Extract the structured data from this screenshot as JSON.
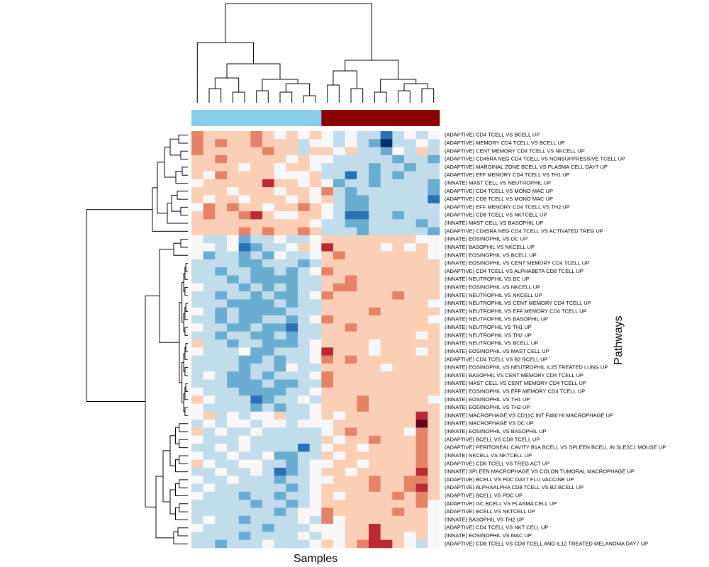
{
  "chart_data": {
    "type": "heatmap",
    "xlabel": "Samples",
    "ylabel": "Pathways",
    "colors": [
      "#053061",
      "#2166ac",
      "#4393c3",
      "#92c5de",
      "#d1e5f0",
      "#f7f7f7",
      "#fddbc7",
      "#f4a582",
      "#d6604d",
      "#b2182b",
      "#67001f"
    ],
    "column_colors": [
      "#87ceeb",
      "#87ceeb",
      "#87ceeb",
      "#87ceeb",
      "#87ceeb",
      "#87ceeb",
      "#87ceeb",
      "#87ceeb",
      "#87ceeb",
      "#87ceeb",
      "#87ceeb",
      "#8b0000",
      "#8b0000",
      "#8b0000",
      "#8b0000",
      "#8b0000",
      "#8b0000",
      "#8b0000",
      "#8b0000",
      "#8b0000",
      "#8b0000"
    ],
    "row_labels": [
      "(ADAPTIVE) CD4 TCELL VS BCELL UP",
      "(ADAPTIVE) MEMORY CD4 TCELL VS BCELL UP",
      "(ADAPTIVE) CENT MEMORY CD4 TCELL VS NKCELL UP",
      "(ADAPTIVE) CD45RA NEG CD4 TCELL VS NONSUPPRESSIVE TCELL UP",
      "(ADAPTIVE) MARGINAL ZONE BCELL VS PLASMA CELL DAY7 UP",
      "(ADAPTIVE) EFF MEMORY CD4 TCELL VS TH1 UP",
      "(INNATE) MAST CELL VS NEUTROPHIL UP",
      "(ADAPTIVE) CD4 TCELL VS MONO MAC UP",
      "(ADAPTIVE) CD8 TCELL VS MONO MAC UP",
      "(ADAPTIVE) EFF MEMORY CD4 TCELL VS TH2 UP",
      "(ADAPTIVE) CD8 TCELL VS NKTCELL UP",
      "(INNATE) MAST CELL VS BASOPHIL UP",
      "(ADAPTIVE) CD45RA NEG CD4 TCELL VS ACTIVATED TREG UP",
      "(INNATE) EOSINOPHIL VS DC UP",
      "(INNATE) BASOPHIL VS NKCELL UP",
      "(INNATE) EOSINOPHIL VS BCELL UP",
      "(INNATE) EOSINOPHIL VS CENT MEMORY CD4 TCELL UP",
      "(ADAPTIVE) CD4 TCELL VS ALPHABETA CD8 TCELL UP",
      "(INNATE) NEUTROPHIL VS DC UP",
      "(INNATE) EOSINOPHIL VS NKCELL UP",
      "(INNATE) NEUTROPHIL VS NKCELL UP",
      "(INNATE) NEUTROPHIL VS CENT MEMORY CD4 TCELL UP",
      "(INNATE) NEUTROPHIL VS EFF MEMORY CD4 TCELL UP",
      "(INNATE) NEUTROPHIL VS BASOPHIL UP",
      "(INNATE) NEUTROPHIL VS TH1 UP",
      "(INNATE) NEUTROPHIL VS TH2 UP",
      "(INNATE) NEUTROPHIL VS BCELL UP",
      "(INNATE) EOSINOPHIL VS MAST CELL UP",
      "(ADAPTIVE) CD4 TCELL VS B2 BCELL UP",
      "(INNATE) EOSINOPHIL VS NEUTROPHIL IL25 TREATED LUNG UP",
      "(INNATE) BASOPHIL VS CENT MEMORY CD4 TCELL UP",
      "(INNATE) MAST CELL VS CENT MEMORY CD4 TCELL UP",
      "(INNATE) EOSINOPHIL VS EFF MEMORY CD4 TCELL UP",
      "(INNATE) EOSINOPHIL VS TH1 UP",
      "(INNATE) EOSINOPHIL VS TH2 UP",
      "(INNATE) MACROPHAGE VS CD11C INT F480 HI MACROPHAGE UP",
      "(INNATE) MACROPHAGE VS DC UP",
      "(INNATE) EOSINOPHIL VS BASOPHIL UP",
      "(ADAPTIVE) BCELL VS CD8 TCELL UP",
      "(ADAPTIVE) PERITONEAL CAVITY B1A BCELL VS SPLEEN BCELL IN SLE2C1 MOUSE UP",
      "(INNATE) NKCELL VS NKTCELL UP",
      "(ADAPTIVE) CD8 TCELL VS TREG ACT UP",
      "(INNATE) SPLEEN MACROPHAGE VS COLON TUMORAL MACROPHAGE UP",
      "(ADAPTIVE) BCELL VS PDC DAY7 FLU VACCINE UP",
      "(ADAPTIVE) ALPHAALPHA CD8 TCELL VS B2 BCELL UP",
      "(ADAPTIVE) BCELL VS PDC UP",
      "(ADAPTIVE) GC BCELL VS PLASMA CELL UP",
      "(ADAPTIVE) BCELL VS NKTCELL UP",
      "(INNATE) BASOPHIL VS TH2 UP",
      "(ADAPTIVE) CD4 TCELL VS NKT CELL UP",
      "(INNATE) EOSINOPHIL VS MAC UP",
      "(ADAPTIVE) CD8 TCELL VS CD8 TCELL AND IL12 TREATED MELANOMA DAY7 UP"
    ],
    "values": [
      [
        2,
        1,
        1,
        1,
        1,
        2,
        1,
        0,
        1,
        0,
        1,
        0,
        -1,
        0,
        -1,
        -1,
        -3,
        -1,
        0,
        -1,
        0
      ],
      [
        2,
        1,
        2,
        1,
        1,
        2,
        1,
        1,
        1,
        -1,
        0,
        0,
        -1,
        0,
        -1,
        -2,
        -4,
        -1,
        -1,
        0,
        -1
      ],
      [
        2,
        1,
        1,
        1,
        1,
        1,
        2,
        1,
        1,
        -1,
        1,
        1,
        0,
        1,
        -1,
        -1,
        -2,
        0,
        -1,
        1,
        -1
      ],
      [
        1,
        1,
        2,
        1,
        1,
        1,
        1,
        1,
        0,
        1,
        0,
        0,
        -1,
        -1,
        -1,
        -1,
        -1,
        -2,
        -1,
        -1,
        -2
      ],
      [
        1,
        1,
        1,
        1,
        0,
        1,
        1,
        0,
        1,
        1,
        0,
        -1,
        -1,
        -1,
        -1,
        -2,
        -1,
        -1,
        -2,
        -1,
        -1
      ],
      [
        1,
        0,
        2,
        1,
        1,
        1,
        1,
        0,
        0,
        0,
        1,
        -1,
        -1,
        -3,
        -1,
        -2,
        -1,
        -2,
        -1,
        -1,
        -1
      ],
      [
        0,
        1,
        1,
        1,
        1,
        1,
        3,
        1,
        1,
        0,
        1,
        0,
        -2,
        -1,
        -1,
        -2,
        -1,
        -1,
        -1,
        -1,
        -2
      ],
      [
        1,
        1,
        1,
        0,
        1,
        1,
        1,
        0,
        1,
        1,
        0,
        2,
        -1,
        -2,
        -1,
        -1,
        -1,
        -1,
        -1,
        -1,
        -2
      ],
      [
        1,
        0,
        1,
        1,
        0,
        1,
        1,
        1,
        0,
        1,
        0,
        1,
        -1,
        -2,
        -2,
        -1,
        -1,
        -1,
        -1,
        -1,
        -3
      ],
      [
        0,
        2,
        1,
        2,
        1,
        1,
        0,
        1,
        1,
        2,
        1,
        0,
        -1,
        -2,
        -2,
        -1,
        -1,
        -1,
        -1,
        -1,
        -1
      ],
      [
        1,
        2,
        1,
        1,
        2,
        3,
        1,
        0,
        0,
        1,
        1,
        0,
        -1,
        -3,
        -3,
        -1,
        -1,
        -2,
        -1,
        -1,
        -1
      ],
      [
        1,
        1,
        1,
        1,
        1,
        1,
        1,
        1,
        1,
        1,
        0,
        -1,
        -1,
        -2,
        -2,
        -1,
        -1,
        -1,
        -1,
        -2,
        -1
      ],
      [
        1,
        1,
        1,
        1,
        2,
        1,
        2,
        1,
        1,
        2,
        1,
        -1,
        -1,
        -1,
        -2,
        -1,
        -1,
        -1,
        -1,
        -1,
        -2
      ],
      [
        0,
        -1,
        -1,
        0,
        -2,
        -1,
        -1,
        0,
        -1,
        -1,
        0,
        1,
        1,
        1,
        1,
        1,
        1,
        1,
        1,
        0,
        0
      ],
      [
        0,
        0,
        -1,
        0,
        -3,
        -2,
        -1,
        -1,
        0,
        1,
        0,
        3,
        1,
        1,
        1,
        1,
        0,
        1,
        0,
        1,
        0
      ],
      [
        0,
        -2,
        -1,
        -1,
        -2,
        -1,
        -2,
        0,
        -1,
        -1,
        0,
        1,
        2,
        1,
        1,
        1,
        1,
        1,
        1,
        1,
        0
      ],
      [
        -1,
        -1,
        -1,
        -1,
        -2,
        -2,
        -1,
        -1,
        -1,
        -2,
        -1,
        1,
        1,
        1,
        1,
        1,
        1,
        1,
        1,
        1,
        1
      ],
      [
        -1,
        -1,
        -2,
        -1,
        -1,
        -2,
        -2,
        -1,
        -2,
        -1,
        0,
        2,
        1,
        1,
        1,
        1,
        1,
        1,
        1,
        1,
        1
      ],
      [
        -1,
        -1,
        -1,
        -2,
        -1,
        -2,
        -2,
        -2,
        -2,
        -1,
        -1,
        1,
        1,
        2,
        1,
        1,
        1,
        1,
        1,
        1,
        1
      ],
      [
        0,
        -1,
        -1,
        -1,
        -2,
        -1,
        -2,
        -1,
        -2,
        -1,
        -1,
        1,
        2,
        2,
        1,
        1,
        1,
        1,
        1,
        1,
        1
      ],
      [
        -1,
        -1,
        -2,
        -1,
        -1,
        -2,
        -1,
        -2,
        -2,
        -1,
        0,
        2,
        1,
        1,
        1,
        1,
        1,
        2,
        1,
        1,
        1
      ],
      [
        -1,
        -1,
        -1,
        -2,
        -2,
        -2,
        -2,
        -1,
        -2,
        -1,
        -1,
        1,
        1,
        1,
        1,
        1,
        1,
        1,
        1,
        1,
        0
      ],
      [
        0,
        -1,
        -2,
        -1,
        -2,
        -2,
        -2,
        -2,
        -1,
        -1,
        -1,
        1,
        1,
        1,
        1,
        2,
        1,
        1,
        1,
        1,
        1
      ],
      [
        -1,
        -1,
        -2,
        -1,
        -2,
        -2,
        -1,
        -1,
        -2,
        -1,
        0,
        2,
        1,
        1,
        1,
        1,
        1,
        1,
        1,
        1,
        0
      ],
      [
        0,
        -1,
        -1,
        -2,
        -2,
        -1,
        -2,
        -2,
        -3,
        -1,
        -1,
        1,
        1,
        2,
        1,
        1,
        1,
        1,
        1,
        1,
        1
      ],
      [
        -1,
        -1,
        -2,
        -1,
        -1,
        -2,
        -2,
        -1,
        -2,
        -1,
        -1,
        1,
        1,
        1,
        1,
        1,
        1,
        1,
        1,
        0,
        1
      ],
      [
        1,
        -1,
        -1,
        -2,
        -1,
        -1,
        -2,
        -2,
        -2,
        -1,
        0,
        1,
        1,
        1,
        1,
        0,
        1,
        1,
        1,
        1,
        1
      ],
      [
        0,
        -1,
        -1,
        -1,
        0,
        -2,
        -2,
        -1,
        -1,
        -1,
        0,
        3,
        1,
        1,
        1,
        0,
        1,
        1,
        1,
        0,
        1
      ],
      [
        -1,
        -1,
        -1,
        -1,
        -2,
        -2,
        -1,
        -2,
        -1,
        -1,
        0,
        2,
        1,
        2,
        1,
        1,
        1,
        1,
        1,
        1,
        1
      ],
      [
        -1,
        -1,
        -1,
        -1,
        -2,
        -1,
        -1,
        -2,
        0,
        -1,
        -1,
        1,
        1,
        1,
        1,
        1,
        0,
        1,
        1,
        1,
        1
      ],
      [
        -1,
        0,
        -1,
        -2,
        -2,
        -1,
        -2,
        -1,
        -1,
        -1,
        0,
        2,
        1,
        1,
        1,
        1,
        1,
        1,
        1,
        1,
        1
      ],
      [
        -1,
        -1,
        -1,
        -2,
        -2,
        -2,
        -1,
        -2,
        -2,
        -1,
        -1,
        2,
        1,
        1,
        1,
        1,
        1,
        1,
        1,
        1,
        1
      ],
      [
        0,
        -1,
        -1,
        -1,
        -2,
        -2,
        -2,
        -2,
        -1,
        -1,
        0,
        1,
        1,
        1,
        1,
        1,
        1,
        1,
        1,
        1,
        1
      ],
      [
        1,
        0,
        -1,
        -1,
        -1,
        -3,
        -2,
        -1,
        -1,
        0,
        -1,
        1,
        1,
        1,
        2,
        1,
        1,
        1,
        1,
        1,
        0
      ],
      [
        0,
        -1,
        -1,
        -1,
        -1,
        -2,
        -1,
        -2,
        -1,
        -1,
        0,
        1,
        1,
        1,
        2,
        1,
        1,
        1,
        1,
        1,
        1
      ],
      [
        0,
        1,
        -1,
        0,
        -1,
        0,
        0,
        1,
        -1,
        -1,
        0,
        1,
        0,
        1,
        1,
        1,
        1,
        1,
        1,
        3,
        1
      ],
      [
        -1,
        0,
        -1,
        0,
        0,
        -1,
        0,
        0,
        -1,
        0,
        0,
        0,
        1,
        1,
        1,
        1,
        1,
        1,
        1,
        4,
        1
      ],
      [
        1,
        -1,
        0,
        -1,
        -1,
        0,
        -1,
        -1,
        -1,
        -1,
        -1,
        0,
        1,
        2,
        1,
        1,
        1,
        1,
        0,
        2,
        1
      ],
      [
        0,
        -1,
        -1,
        -1,
        0,
        -1,
        -1,
        -1,
        -1,
        -1,
        -1,
        1,
        0,
        1,
        1,
        2,
        1,
        1,
        1,
        2,
        1
      ],
      [
        -1,
        -1,
        0,
        -1,
        0,
        -1,
        -1,
        -1,
        -1,
        -3,
        -1,
        0,
        1,
        1,
        0,
        1,
        1,
        1,
        1,
        2,
        1
      ],
      [
        0,
        -1,
        -1,
        0,
        -1,
        -1,
        0,
        -2,
        -2,
        -1,
        -1,
        1,
        0,
        1,
        1,
        1,
        1,
        1,
        1,
        2,
        1
      ],
      [
        1,
        0,
        -1,
        -1,
        0,
        0,
        -1,
        -1,
        -2,
        -1,
        0,
        0,
        1,
        1,
        0,
        1,
        1,
        1,
        1,
        2,
        1
      ],
      [
        -1,
        -1,
        0,
        -1,
        -1,
        0,
        -1,
        -3,
        -2,
        -1,
        0,
        1,
        1,
        0,
        1,
        1,
        1,
        1,
        1,
        3,
        1
      ],
      [
        0,
        -1,
        -1,
        0,
        -1,
        -1,
        -1,
        -2,
        -1,
        -1,
        0,
        0,
        1,
        1,
        1,
        2,
        1,
        1,
        2,
        2,
        1
      ],
      [
        -1,
        0,
        -1,
        -1,
        -1,
        -1,
        -1,
        -1,
        -2,
        -1,
        0,
        1,
        1,
        1,
        1,
        2,
        1,
        1,
        2,
        3,
        1
      ],
      [
        0,
        -1,
        -1,
        -1,
        -2,
        -1,
        -1,
        -2,
        -1,
        -1,
        0,
        1,
        0,
        1,
        1,
        1,
        1,
        2,
        1,
        2,
        1
      ],
      [
        -1,
        -1,
        -1,
        -1,
        -1,
        -2,
        -1,
        -1,
        -2,
        -1,
        0,
        1,
        1,
        1,
        1,
        1,
        1,
        1,
        1,
        2,
        0
      ],
      [
        -1,
        -1,
        -1,
        -1,
        -1,
        -1,
        -1,
        -2,
        -1,
        0,
        0,
        2,
        1,
        1,
        1,
        1,
        1,
        2,
        1,
        1,
        0
      ],
      [
        -1,
        0,
        -1,
        -1,
        -2,
        -1,
        -1,
        -1,
        -1,
        0,
        -1,
        2,
        0,
        1,
        1,
        1,
        1,
        1,
        1,
        1,
        0
      ],
      [
        0,
        -1,
        -1,
        -1,
        -1,
        -1,
        -2,
        -1,
        -1,
        -1,
        0,
        0,
        0,
        1,
        1,
        3,
        1,
        1,
        1,
        1,
        0
      ],
      [
        -1,
        -1,
        -1,
        -1,
        -2,
        -1,
        -1,
        -1,
        -1,
        0,
        -1,
        0,
        0,
        1,
        1,
        3,
        1,
        1,
        0,
        1,
        0
      ],
      [
        -1,
        -1,
        -2,
        -1,
        -1,
        -1,
        0,
        -1,
        -1,
        -1,
        0,
        1,
        0,
        1,
        2,
        3,
        3,
        1,
        0,
        -1,
        0
      ]
    ]
  }
}
